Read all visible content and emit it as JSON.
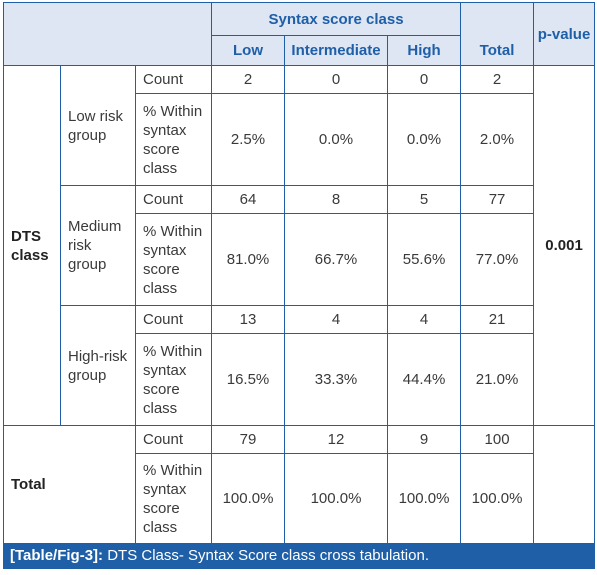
{
  "header": {
    "group_title": "Syntax score class",
    "col_low": "Low",
    "col_intermediate": "Intermediate",
    "col_high": "High",
    "col_total": "Total",
    "col_pvalue": "p-value"
  },
  "row_group": "DTS class",
  "count_label": "Count",
  "pct_label": "% Within syntax score class",
  "groups": [
    {
      "name": "Low risk group",
      "count": [
        "2",
        "0",
        "0",
        "2"
      ],
      "pct": [
        "2.5%",
        "0.0%",
        "0.0%",
        "2.0%"
      ]
    },
    {
      "name": "Medium risk group",
      "count": [
        "64",
        "8",
        "5",
        "77"
      ],
      "pct": [
        "81.0%",
        "66.7%",
        "55.6%",
        "77.0%"
      ]
    },
    {
      "name": "High-risk group",
      "count": [
        "13",
        "4",
        "4",
        "21"
      ],
      "pct": [
        "16.5%",
        "33.3%",
        "44.4%",
        "21.0%"
      ]
    }
  ],
  "total": {
    "label": "Total",
    "count": [
      "79",
      "12",
      "9",
      "100"
    ],
    "pct": [
      "100.0%",
      "100.0%",
      "100.0%",
      "100.0%"
    ]
  },
  "p_value": "0.001",
  "caption": {
    "tag": "[Table/Fig-3]:",
    "text": " DTS Class- Syntax Score class cross tabulation."
  },
  "colors": {
    "border": "#1f5fa8",
    "header_bg": "#dde6f2",
    "caption_bg": "#1f5fa8"
  }
}
